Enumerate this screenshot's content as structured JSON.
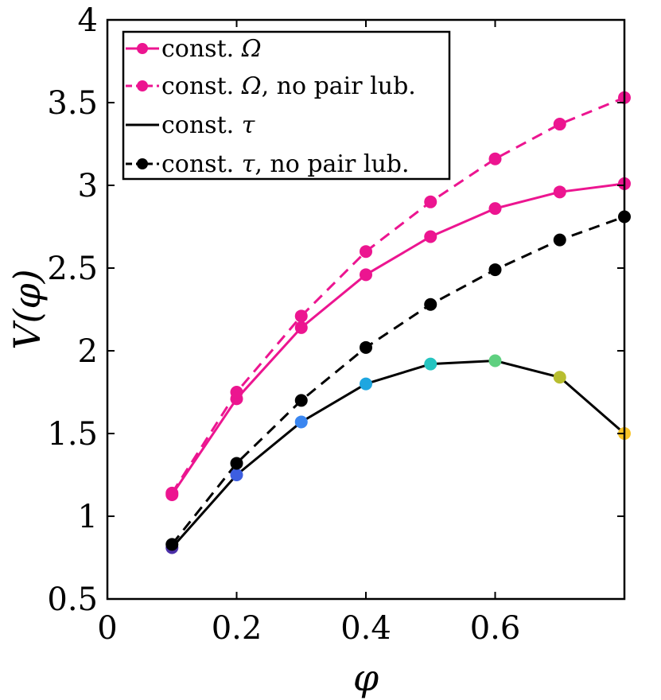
{
  "chart_data": {
    "type": "line",
    "title": "",
    "xlabel": "φ",
    "ylabel": "V(φ)",
    "xlim": [
      0,
      0.8
    ],
    "ylim": [
      0.5,
      4
    ],
    "xticks": [
      0,
      0.2,
      0.4,
      0.6
    ],
    "xtick_labels": [
      "0",
      "0.2",
      "0.4",
      "0.6"
    ],
    "yticks": [
      0.5,
      1,
      1.5,
      2,
      2.5,
      3,
      3.5,
      4
    ],
    "ytick_labels": [
      "0.5",
      "1",
      "1.5",
      "2",
      "2.5",
      "3",
      "3.5",
      "4"
    ],
    "grid": false,
    "legend_position": "top-left",
    "x": [
      0.1,
      0.2,
      0.3,
      0.4,
      0.5,
      0.6,
      0.7,
      0.8
    ],
    "series": [
      {
        "name": "const. Ω",
        "values": [
          1.13,
          1.71,
          2.14,
          2.46,
          2.69,
          2.86,
          2.96,
          3.01
        ],
        "color": "#ec1590",
        "line": "solid",
        "marker_colors": [
          "#ec1590",
          "#ec1590",
          "#ec1590",
          "#ec1590",
          "#ec1590",
          "#ec1590",
          "#ec1590",
          "#ec1590"
        ]
      },
      {
        "name": "const. Ω, no pair lub.",
        "values": [
          1.14,
          1.75,
          2.21,
          2.6,
          2.9,
          3.16,
          3.37,
          3.53
        ],
        "color": "#ec1590",
        "line": "dashed",
        "marker_colors": [
          "#ec1590",
          "#ec1590",
          "#ec1590",
          "#ec1590",
          "#ec1590",
          "#ec1590",
          "#ec1590",
          "#ec1590"
        ]
      },
      {
        "name": "const. τ",
        "values": [
          0.81,
          1.25,
          1.57,
          1.8,
          1.92,
          1.94,
          1.84,
          1.5
        ],
        "color": "#000000",
        "line": "solid",
        "marker_colors": [
          "#4b2fa8",
          "#3d5ee0",
          "#3a86f0",
          "#1ea6e0",
          "#25c4c0",
          "#5fd080",
          "#b8be30",
          "#f9c52a"
        ]
      },
      {
        "name": "const. τ, no pair lub.",
        "values": [
          0.83,
          1.32,
          1.7,
          2.02,
          2.28,
          2.49,
          2.67,
          2.81
        ],
        "color": "#000000",
        "line": "dashed",
        "marker_colors": [
          "#000000",
          "#000000",
          "#000000",
          "#000000",
          "#000000",
          "#000000",
          "#000000",
          "#000000"
        ]
      }
    ],
    "legend": [
      {
        "label_prefix": "const. ",
        "label_symbol": "Ω",
        "label_suffix": "",
        "color": "#ec1590",
        "line": "solid",
        "marker": true
      },
      {
        "label_prefix": "const. ",
        "label_symbol": "Ω",
        "label_suffix": ", no pair lub.",
        "color": "#ec1590",
        "line": "dashed",
        "marker": true
      },
      {
        "label_prefix": "const. ",
        "label_symbol": "τ",
        "label_suffix": "",
        "color": "#000000",
        "line": "solid",
        "marker": false
      },
      {
        "label_prefix": "const. ",
        "label_symbol": "τ",
        "label_suffix": ", no pair lub.",
        "color": "#000000",
        "line": "dashed",
        "marker": true
      }
    ]
  }
}
